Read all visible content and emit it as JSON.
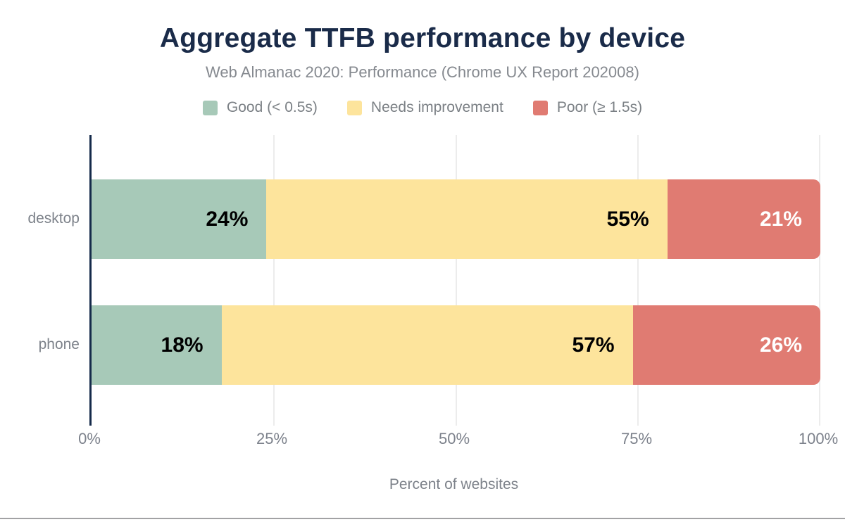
{
  "header": {
    "title": "Aggregate TTFB performance by device",
    "subtitle": "Web Almanac 2020: Performance (Chrome UX Report 202008)"
  },
  "axis": {
    "xlabel": "Percent of websites",
    "ticks": [
      "0%",
      "25%",
      "50%",
      "75%",
      "100%"
    ]
  },
  "chart_data": {
    "type": "bar",
    "orientation": "horizontal",
    "stacked": true,
    "title": "Aggregate TTFB performance by device",
    "subtitle": "Web Almanac 2020: Performance (Chrome UX Report 202008)",
    "categories": [
      "desktop",
      "phone"
    ],
    "series": [
      {
        "name": "Good (< 0.5s)",
        "color": "#a7c9b8",
        "values": [
          24,
          18
        ]
      },
      {
        "name": "Needs improvement",
        "color": "#fde49c",
        "values": [
          55,
          57
        ]
      },
      {
        "name": "Poor (≥ 1.5s)",
        "color": "#e07b72",
        "values": [
          21,
          26
        ]
      }
    ],
    "bar_labels": [
      [
        "24%",
        "55%",
        "21%"
      ],
      [
        "18%",
        "57%",
        "26%"
      ]
    ],
    "label_colors": [
      "#000000",
      "#000000",
      "#ffffff"
    ],
    "xlabel": "Percent of websites",
    "x_ticks": [
      "0%",
      "25%",
      "50%",
      "75%",
      "100%"
    ],
    "xlim": [
      0,
      100
    ],
    "grid": "vertical-light",
    "legend_position": "top",
    "colors": {
      "title": "#1a2b49",
      "subtitle": "#85898f",
      "axis_line": "#152a4a",
      "gridline": "#ececec",
      "axis_text": "#7c818b"
    }
  }
}
